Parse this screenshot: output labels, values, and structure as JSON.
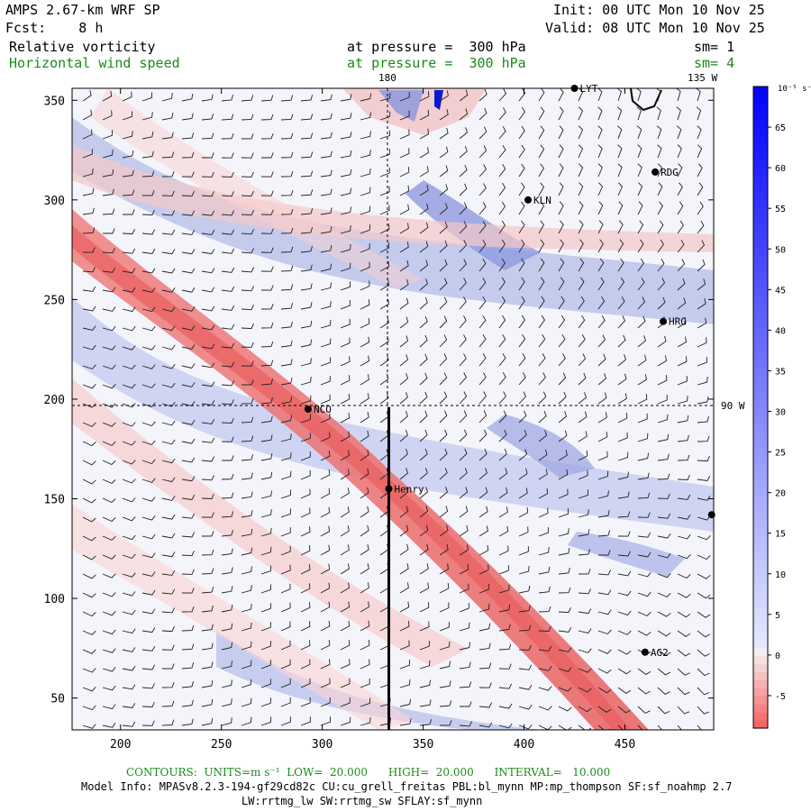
{
  "header": {
    "title": "AMPS 2.67-km WRF SP",
    "forecast": "Fcst:    8 h",
    "init": "Init: 00 UTC Mon 10 Nov 25",
    "valid": "Valid: 08 UTC Mon 10 Nov 25",
    "field1_name": "Relative vorticity",
    "field1_level": "at pressure =  300 hPa",
    "field1_sm": "sm= 1",
    "field2_name": "Horizontal wind speed",
    "field2_level": "at pressure =  300 hPa",
    "field2_sm": "sm= 4"
  },
  "map": {
    "x_ticks": [
      200,
      250,
      300,
      350,
      400,
      450
    ],
    "y_ticks": [
      50,
      100,
      150,
      200,
      250,
      300,
      350
    ],
    "x_range": [
      176,
      494
    ],
    "y_range": [
      34,
      356
    ],
    "longitude_labels": {
      "top": "180",
      "top_right": "135 W",
      "right": "90 W"
    },
    "stations": [
      {
        "name": "LYT",
        "x": 425,
        "y": 356
      },
      {
        "name": "RDG",
        "x": 465,
        "y": 314
      },
      {
        "name": "KLN",
        "x": 402,
        "y": 300
      },
      {
        "name": "HRG",
        "x": 469,
        "y": 239
      },
      {
        "name": "NCO",
        "x": 293,
        "y": 195
      },
      {
        "name": "Henry",
        "x": 333,
        "y": 155
      },
      {
        "name": "AG2",
        "x": 460,
        "y": 73
      },
      {
        "name": "",
        "x": 493,
        "y": 142
      }
    ],
    "section_line": {
      "x": 333,
      "y_from": 34,
      "y_to": 196
    }
  },
  "colorbar": {
    "unit": "10⁻⁵ s⁻¹",
    "labels": [
      65,
      60,
      55,
      50,
      45,
      40,
      35,
      30,
      25,
      20,
      15,
      10,
      5,
      0,
      -5
    ],
    "min": -9,
    "max": 70
  },
  "footer": {
    "contours": "CONTOURS:  UNITS=m s⁻¹  LOW=  20.000      HIGH=  20.000      INTERVAL=   10.000",
    "model_info": "Model Info: MPASv8.2.3-194-gf29cd82c CU:cu_grell_freitas PBL:bl_mynn MP:mp_thompson SF:sf_noahmp 2.7",
    "model_info2": "LW:rrtmg_lw SW:rrtmg_sw SFLAY:sf_mynn"
  }
}
